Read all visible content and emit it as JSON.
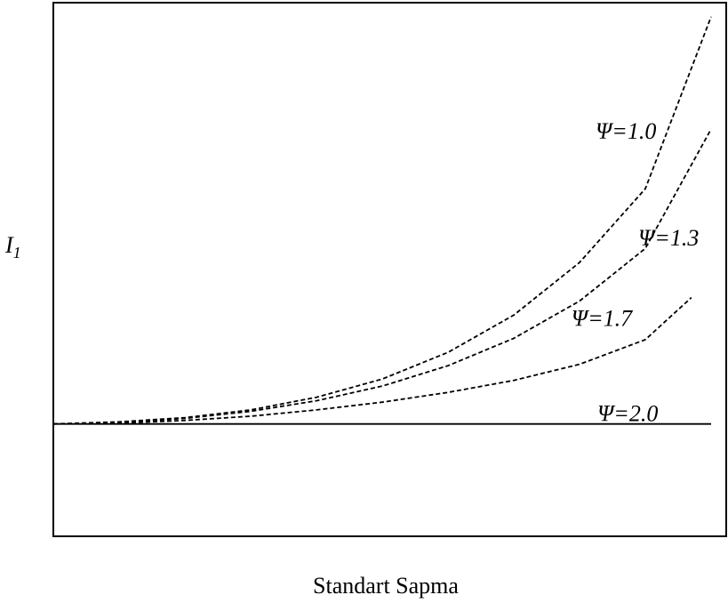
{
  "chart_data": {
    "type": "line",
    "title": "",
    "xlabel": "Standart Sapma",
    "ylabel": {
      "main": "I",
      "sub": "1"
    },
    "grid": false,
    "legend": "none",
    "xlim": [
      0,
      10
    ],
    "ylim": [
      -1.6,
      6
    ],
    "series": [
      {
        "name": "Ψ=1.0",
        "style": "dashed",
        "x": [
          0,
          1,
          2,
          3,
          4,
          5,
          6,
          7,
          8,
          9,
          10
        ],
        "values": [
          0,
          0.03,
          0.09,
          0.2,
          0.38,
          0.64,
          1.02,
          1.55,
          2.3,
          3.35,
          5.8
        ]
      },
      {
        "name": "Ψ=1.3",
        "style": "dashed",
        "x": [
          0,
          1,
          2,
          3,
          4,
          5,
          6,
          7,
          8,
          9,
          10
        ],
        "values": [
          0,
          0.02,
          0.08,
          0.18,
          0.33,
          0.54,
          0.83,
          1.22,
          1.75,
          2.5,
          4.2
        ]
      },
      {
        "name": "Ψ=1.7",
        "style": "dashed",
        "x": [
          0,
          1,
          2,
          3,
          4,
          5,
          6,
          7,
          8,
          9,
          9.7
        ],
        "values": [
          0,
          0.01,
          0.05,
          0.11,
          0.2,
          0.31,
          0.45,
          0.62,
          0.85,
          1.2,
          1.8
        ]
      },
      {
        "name": "Ψ=2.0",
        "style": "solid",
        "x": [
          0,
          10
        ],
        "values": [
          0,
          0
        ]
      }
    ]
  }
}
